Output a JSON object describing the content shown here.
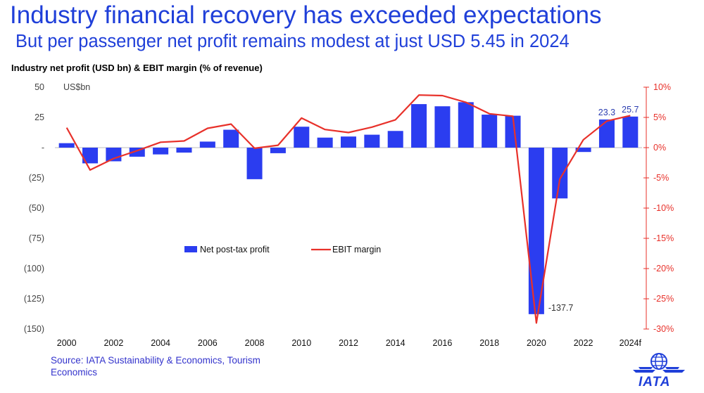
{
  "header": {
    "title": "Industry financial recovery has exceeded expectations",
    "subtitle": "But per passenger net profit remains modest at just USD 5.45 in 2024"
  },
  "chart_label": "Industry net profit (USD bn) & EBIT margin (% of revenue)",
  "source": "Source: IATA Sustainability & Economics, Tourism Economics",
  "logo": {
    "text": "IATA",
    "icon": "iata-globe-wings-logo"
  },
  "colors": {
    "title": "#1f3fd9",
    "bars": "#2b3df0",
    "line": "#e8312a",
    "source": "#3333cc"
  },
  "chart_data": {
    "type": "bar",
    "x": [
      "2000",
      "2001",
      "2002",
      "2003",
      "2004",
      "2005",
      "2006",
      "2007",
      "2008",
      "2009",
      "2010",
      "2011",
      "2012",
      "2013",
      "2014",
      "2015",
      "2016",
      "2017",
      "2018",
      "2019",
      "2020",
      "2021",
      "2022",
      "2023",
      "2024f"
    ],
    "x_tick_labels": [
      "2000",
      "2002",
      "2004",
      "2006",
      "2008",
      "2010",
      "2012",
      "2014",
      "2016",
      "2018",
      "2020",
      "2022",
      "2024f"
    ],
    "series": [
      {
        "name": "Net post-tax profit",
        "type": "bar",
        "axis": "left",
        "values": [
          3.7,
          -13.0,
          -11.3,
          -7.5,
          -5.6,
          -4.1,
          5.0,
          14.8,
          -26.1,
          -4.6,
          17.3,
          8.3,
          9.2,
          10.7,
          13.8,
          36.0,
          34.2,
          37.6,
          27.3,
          26.4,
          -137.7,
          -42.0,
          -3.6,
          23.3,
          25.7
        ]
      },
      {
        "name": "EBIT margin",
        "type": "line",
        "axis": "right",
        "values": [
          3.3,
          -3.7,
          -1.8,
          -0.5,
          0.9,
          1.1,
          3.2,
          3.9,
          -0.1,
          0.4,
          4.9,
          3.0,
          2.5,
          3.4,
          4.6,
          8.7,
          8.6,
          7.5,
          5.6,
          5.2,
          -29.0,
          -5.2,
          1.3,
          4.4,
          5.3
        ]
      }
    ],
    "left_axis": {
      "unit_label": "US$bn",
      "min": -150,
      "max": 50,
      "ticks": [
        50,
        25,
        0,
        -25,
        -50,
        -75,
        -100,
        -125,
        -150
      ],
      "tick_labels": [
        "50",
        "25",
        "-",
        "(25)",
        "(50)",
        "(75)",
        "(100)",
        "(125)",
        "(150)"
      ]
    },
    "right_axis": {
      "min": -30,
      "max": 10,
      "ticks": [
        10,
        5,
        0,
        -5,
        -10,
        -15,
        -20,
        -25,
        -30
      ],
      "tick_labels": [
        "10%",
        "5%",
        "0%",
        "-5%",
        "-10%",
        "-15%",
        "-20%",
        "-25%",
        "-30%"
      ]
    },
    "data_labels": [
      {
        "year": "2020",
        "text": "-137.7"
      },
      {
        "year": "2023",
        "text": "23.3"
      },
      {
        "year": "2024f",
        "text": "25.7"
      }
    ],
    "legend": {
      "placement": "center",
      "items": [
        "Net post-tax profit",
        "EBIT margin"
      ]
    },
    "grid": false
  }
}
